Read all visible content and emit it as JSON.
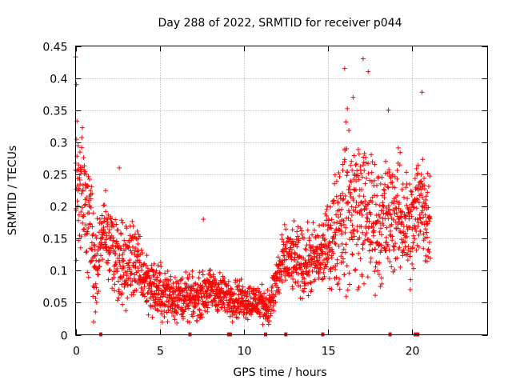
{
  "chart_data": {
    "type": "scatter",
    "title": "Day 288 of 2022, SRMTID for receiver p044",
    "xlabel": "GPS time / hours",
    "ylabel": "SRMTID / TECUs",
    "xlim": [
      0,
      24.5
    ],
    "ylim": [
      0,
      0.45
    ],
    "x_ticks": [
      0,
      5,
      10,
      15,
      20
    ],
    "x_tick_labels": [
      "0",
      "5",
      "10",
      "15",
      "20"
    ],
    "y_ticks": [
      0,
      0.05,
      0.1,
      0.15,
      0.2,
      0.25,
      0.3,
      0.35,
      0.4,
      0.45
    ],
    "y_tick_labels": [
      "0",
      "0.05",
      "0.1",
      "0.15",
      "0.2",
      "0.25",
      "0.3",
      "0.35",
      "0.4",
      "0.45"
    ],
    "grid": true,
    "marker": "+",
    "color": "#ff0000",
    "trend": [
      {
        "x": 0.0,
        "y": 0.23
      },
      {
        "x": 0.4,
        "y": 0.22
      },
      {
        "x": 0.8,
        "y": 0.17
      },
      {
        "x": 1.2,
        "y": 0.1
      },
      {
        "x": 1.6,
        "y": 0.16
      },
      {
        "x": 2.0,
        "y": 0.15
      },
      {
        "x": 2.5,
        "y": 0.1
      },
      {
        "x": 3.0,
        "y": 0.11
      },
      {
        "x": 3.5,
        "y": 0.12
      },
      {
        "x": 4.0,
        "y": 0.09
      },
      {
        "x": 5.0,
        "y": 0.065
      },
      {
        "x": 6.0,
        "y": 0.06
      },
      {
        "x": 7.0,
        "y": 0.055
      },
      {
        "x": 8.0,
        "y": 0.07
      },
      {
        "x": 9.0,
        "y": 0.06
      },
      {
        "x": 10.0,
        "y": 0.055
      },
      {
        "x": 11.0,
        "y": 0.05
      },
      {
        "x": 11.5,
        "y": 0.04
      },
      {
        "x": 12.0,
        "y": 0.09
      },
      {
        "x": 12.5,
        "y": 0.12
      },
      {
        "x": 13.5,
        "y": 0.11
      },
      {
        "x": 14.5,
        "y": 0.12
      },
      {
        "x": 15.2,
        "y": 0.15
      },
      {
        "x": 16.0,
        "y": 0.2
      },
      {
        "x": 16.6,
        "y": 0.2
      },
      {
        "x": 17.2,
        "y": 0.19
      },
      {
        "x": 18.0,
        "y": 0.17
      },
      {
        "x": 19.0,
        "y": 0.19
      },
      {
        "x": 19.5,
        "y": 0.18
      },
      {
        "x": 20.0,
        "y": 0.16
      },
      {
        "x": 20.5,
        "y": 0.22
      },
      {
        "x": 21.0,
        "y": 0.18
      }
    ],
    "spread": [
      {
        "x": 0.0,
        "y": 0.1
      },
      {
        "x": 1.0,
        "y": 0.1
      },
      {
        "x": 1.5,
        "y": 0.06
      },
      {
        "x": 3.0,
        "y": 0.08
      },
      {
        "x": 4.0,
        "y": 0.05
      },
      {
        "x": 7.0,
        "y": 0.035
      },
      {
        "x": 11.5,
        "y": 0.03
      },
      {
        "x": 12.0,
        "y": 0.05
      },
      {
        "x": 15.0,
        "y": 0.06
      },
      {
        "x": 16.0,
        "y": 0.14
      },
      {
        "x": 18.0,
        "y": 0.1
      },
      {
        "x": 21.0,
        "y": 0.09
      }
    ],
    "sample_step_hours": 0.01,
    "data_range": [
      0.0,
      21.1
    ],
    "peaks": [
      {
        "x": 0.0,
        "y": 0.433
      },
      {
        "x": 0.05,
        "y": 0.39
      },
      {
        "x": 0.08,
        "y": 0.333
      },
      {
        "x": 16.0,
        "y": 0.415
      },
      {
        "x": 16.5,
        "y": 0.37
      },
      {
        "x": 17.1,
        "y": 0.43
      },
      {
        "x": 17.4,
        "y": 0.41
      },
      {
        "x": 20.6,
        "y": 0.378
      },
      {
        "x": 7.6,
        "y": 0.18
      },
      {
        "x": 2.6,
        "y": 0.26
      },
      {
        "x": 18.6,
        "y": 0.35
      }
    ],
    "gap_markers_x": [
      1.5,
      6.8,
      9.1,
      9.2,
      11.3,
      12.5,
      14.7,
      18.7,
      20.2,
      20.35
    ]
  }
}
